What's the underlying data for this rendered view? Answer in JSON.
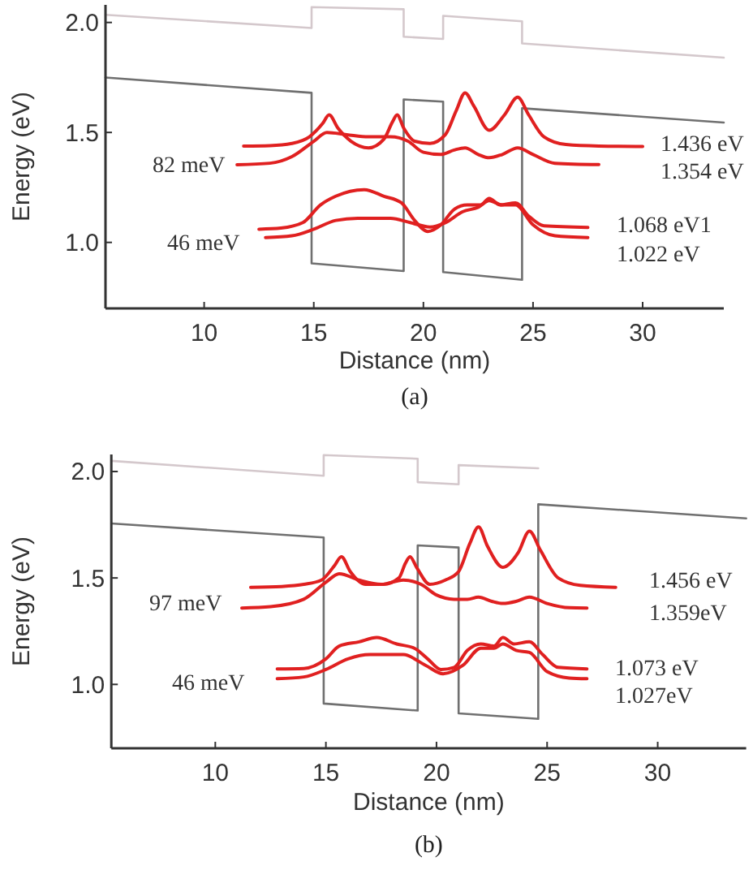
{
  "chart_data": [
    {
      "type": "line",
      "xlabel": "Distance (nm)",
      "ylabel": "Energy (eV)",
      "xlim": [
        5.5,
        33.7
      ],
      "ylim": [
        0.7,
        2.08
      ],
      "xticks": [
        10,
        15,
        20,
        25,
        30
      ],
      "yticks": [
        {
          "value": 1.0,
          "label": "1.0"
        },
        {
          "value": 1.5,
          "label": "1.5"
        },
        {
          "value": 2.0,
          "label": "2.0"
        }
      ],
      "grid": false,
      "marker": "none",
      "series": [
        {
          "color": "#707070",
          "x": [
            5.5,
            14.9,
            14.9,
            19.1,
            19.1,
            20.9,
            20.9,
            24.5,
            24.5,
            33.7
          ],
          "values": [
            1.75,
            1.68,
            0.905,
            0.87,
            1.65,
            1.64,
            0.865,
            0.83,
            1.61,
            1.545
          ]
        },
        {
          "color": "#d4c8cc",
          "x": [
            5.5,
            14.9,
            14.9,
            19.1,
            19.1,
            20.9,
            20.9,
            24.5,
            24.5,
            33.7
          ],
          "values": [
            2.035,
            1.975,
            2.07,
            2.06,
            1.935,
            1.925,
            2.03,
            2.005,
            1.905,
            1.84
          ]
        },
        {
          "color": "#e02020",
          "x": [
            11.8,
            13,
            14,
            14.8,
            15.4,
            15.7,
            16.1,
            16.7,
            17.5,
            18.2,
            18.6,
            18.8,
            19.1,
            19.6,
            20.3,
            21,
            21.5,
            21.9,
            22.3,
            23,
            23.7,
            24.3,
            24.8,
            25.5,
            26.5,
            28,
            30
          ],
          "values": [
            1.438,
            1.44,
            1.45,
            1.48,
            1.54,
            1.58,
            1.52,
            1.46,
            1.43,
            1.47,
            1.55,
            1.58,
            1.52,
            1.46,
            1.45,
            1.49,
            1.6,
            1.68,
            1.62,
            1.51,
            1.58,
            1.66,
            1.58,
            1.48,
            1.445,
            1.438,
            1.436
          ]
        },
        {
          "color": "#e02020",
          "x": [
            11.5,
            13,
            14,
            15,
            15.6,
            16.5,
            17.5,
            18.5,
            19.3,
            20,
            20.8,
            21.4,
            21.9,
            22.5,
            23,
            23.6,
            24.3,
            25,
            26,
            28
          ],
          "values": [
            1.353,
            1.36,
            1.39,
            1.46,
            1.5,
            1.49,
            1.48,
            1.48,
            1.46,
            1.41,
            1.4,
            1.42,
            1.43,
            1.4,
            1.385,
            1.4,
            1.43,
            1.4,
            1.36,
            1.354
          ]
        },
        {
          "color": "#e02020",
          "x": [
            12.5,
            13.5,
            14.5,
            15.3,
            16,
            17.3,
            18.2,
            19,
            19.6,
            20.2,
            20.8,
            21.4,
            22,
            22.6,
            23,
            23.5,
            24.2,
            24.8,
            25.5,
            27.5
          ],
          "values": [
            1.06,
            1.065,
            1.09,
            1.17,
            1.21,
            1.24,
            1.21,
            1.18,
            1.1,
            1.05,
            1.08,
            1.15,
            1.17,
            1.17,
            1.2,
            1.17,
            1.18,
            1.12,
            1.075,
            1.068
          ]
        },
        {
          "color": "#e02020",
          "x": [
            12.8,
            14,
            15,
            16,
            17,
            18.5,
            19.4,
            20.3,
            21,
            21.8,
            22.5,
            23,
            23.6,
            24.2,
            25,
            26,
            27.5
          ],
          "values": [
            1.022,
            1.03,
            1.06,
            1.1,
            1.11,
            1.11,
            1.09,
            1.07,
            1.09,
            1.14,
            1.16,
            1.19,
            1.17,
            1.17,
            1.08,
            1.03,
            1.022
          ]
        }
      ],
      "annotations": [
        "1.436 eV",
        "1.354 eV",
        "82 meV",
        "1.068 eV1",
        "1.022 eV",
        "46 meV",
        "(a)"
      ]
    },
    {
      "type": "line",
      "xlabel": "Distance (nm)",
      "ylabel": "Energy (eV)",
      "xlim": [
        5.3,
        34
      ],
      "ylim": [
        0.7,
        2.08
      ],
      "xticks": [
        10,
        15,
        20,
        25,
        30
      ],
      "yticks": [
        {
          "value": 1.0,
          "label": "1.0"
        },
        {
          "value": 1.5,
          "label": "1.5"
        },
        {
          "value": 2.0,
          "label": "2.0"
        }
      ],
      "grid": false,
      "marker": "none",
      "series": [
        {
          "color": "#707070",
          "x": [
            5.3,
            14.9,
            14.9,
            19.15,
            19.15,
            21,
            21,
            24.6,
            24.6,
            34
          ],
          "values": [
            1.756,
            1.69,
            0.91,
            0.877,
            1.653,
            1.643,
            0.864,
            0.838,
            1.846,
            1.78
          ]
        },
        {
          "color": "#d4c8cc",
          "x": [
            5.3,
            14.9,
            14.9,
            19.15,
            19.15,
            21,
            21,
            24.6
          ],
          "values": [
            2.05,
            1.98,
            2.077,
            2.06,
            1.95,
            1.94,
            2.03,
            2.015
          ]
        },
        {
          "color": "#e02020",
          "x": [
            11.6,
            13,
            14,
            14.8,
            15.4,
            15.7,
            16.1,
            16.8,
            17.6,
            18.3,
            18.6,
            18.8,
            19.1,
            19.7,
            20.4,
            21,
            21.5,
            21.9,
            22.3,
            23,
            23.7,
            24.2,
            24.7,
            25.5,
            26.5,
            28.1
          ],
          "values": [
            1.456,
            1.46,
            1.47,
            1.49,
            1.56,
            1.6,
            1.53,
            1.47,
            1.47,
            1.5,
            1.57,
            1.6,
            1.55,
            1.47,
            1.49,
            1.53,
            1.66,
            1.74,
            1.65,
            1.55,
            1.62,
            1.72,
            1.63,
            1.5,
            1.465,
            1.456
          ]
        },
        {
          "color": "#e02020",
          "x": [
            11.2,
            12.5,
            14,
            15,
            15.6,
            16.5,
            17.5,
            18.5,
            19.3,
            20,
            20.8,
            21.4,
            21.9,
            22.5,
            23,
            23.6,
            24.2,
            25,
            26,
            26.8
          ],
          "values": [
            1.359,
            1.365,
            1.4,
            1.48,
            1.52,
            1.49,
            1.47,
            1.49,
            1.47,
            1.42,
            1.4,
            1.4,
            1.41,
            1.39,
            1.38,
            1.39,
            1.41,
            1.38,
            1.36,
            1.359
          ]
        },
        {
          "color": "#e02020",
          "x": [
            12.8,
            14,
            15,
            15.6,
            16.5,
            17.3,
            18.2,
            19,
            19.6,
            20.2,
            20.8,
            21.4,
            22,
            22.6,
            23,
            23.5,
            24.2,
            24.8,
            25.5,
            26.8
          ],
          "values": [
            1.073,
            1.075,
            1.12,
            1.18,
            1.2,
            1.22,
            1.19,
            1.17,
            1.12,
            1.07,
            1.08,
            1.16,
            1.19,
            1.18,
            1.22,
            1.19,
            1.2,
            1.14,
            1.08,
            1.073
          ]
        },
        {
          "color": "#e02020",
          "x": [
            12.8,
            14,
            15,
            16,
            17,
            18.5,
            19.5,
            20.3,
            21.2,
            22,
            22.6,
            23,
            23.6,
            24.2,
            25,
            26,
            26.8
          ],
          "values": [
            1.027,
            1.035,
            1.07,
            1.12,
            1.14,
            1.14,
            1.09,
            1.05,
            1.09,
            1.17,
            1.17,
            1.19,
            1.16,
            1.15,
            1.06,
            1.03,
            1.027
          ]
        }
      ],
      "annotations": [
        "1.456 eV",
        "1.359eV",
        "97 meV",
        "1.073 eV",
        "1.027eV",
        "46 meV",
        "(b)"
      ]
    }
  ]
}
